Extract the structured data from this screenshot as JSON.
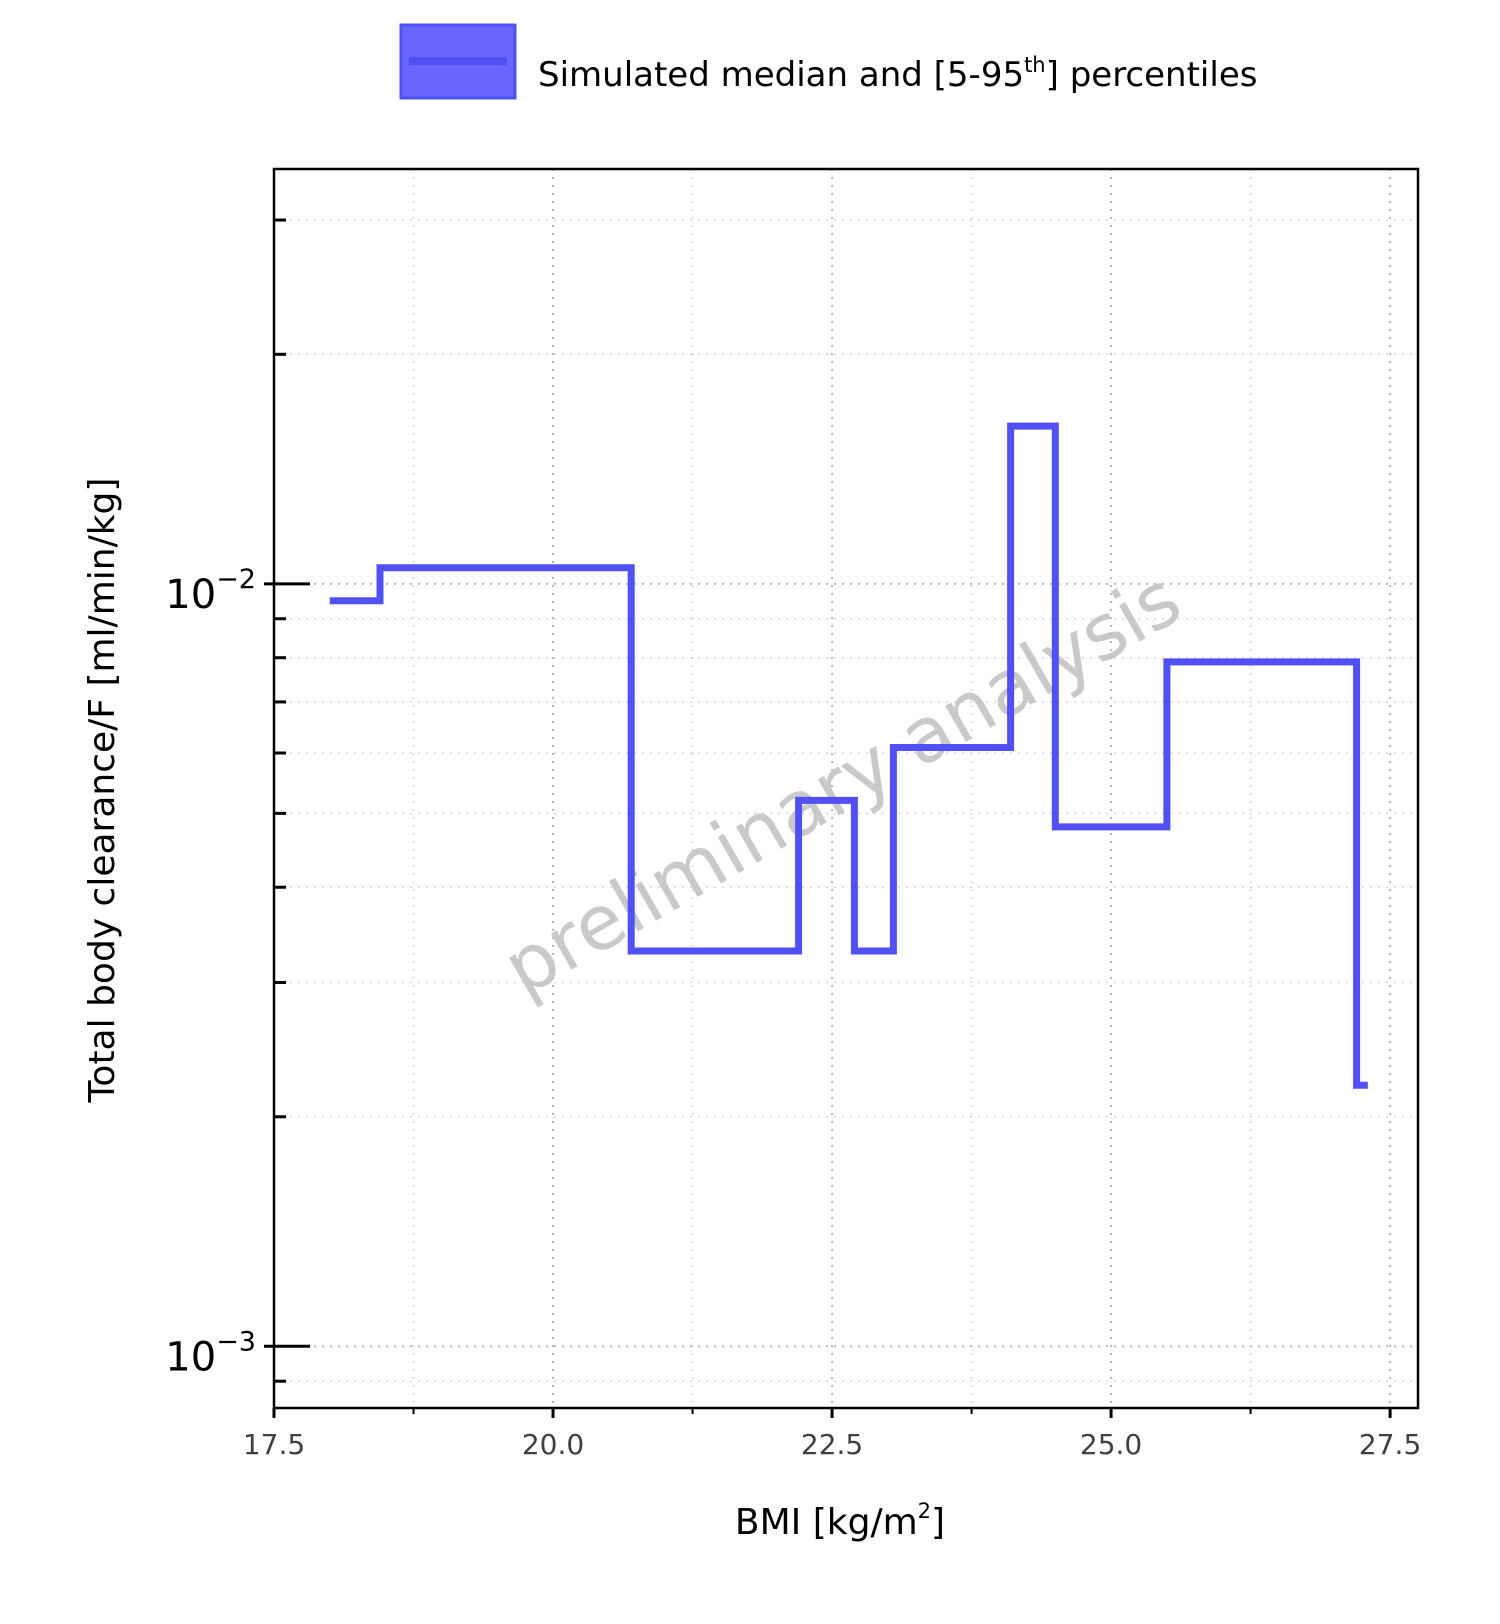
{
  "chart_data": {
    "type": "line",
    "line_shape": "step",
    "series": [
      {
        "label": "median",
        "color": "#5050F5",
        "x": [
          18.0,
          18.45,
          20.7,
          22.2,
          22.7,
          23.05,
          24.1,
          24.5,
          25.5,
          27.2,
          27.3
        ],
        "y": [
          0.0095,
          0.0105,
          0.0033,
          0.0052,
          0.0033,
          0.0061,
          0.0161,
          0.0048,
          0.0079,
          0.0022,
          0.0022
        ]
      }
    ],
    "legend": {
      "position": "top-center",
      "entry_main": "Simulated median and [5-95",
      "entry_sup": "th",
      "entry_end": "] percentiles",
      "swatch_fill": "#6666FF",
      "swatch_line": "#5050F5"
    },
    "xlabel": {
      "main": "BMI [kg/m",
      "sup": "2",
      "end": "]"
    },
    "ylabel": "Total body clearance/F [ml/min/kg]",
    "xlim": [
      17.5,
      27.75
    ],
    "ylim": [
      0.00083,
      0.035
    ],
    "yscale": "log",
    "x_ticks": [
      {
        "value": 17.5,
        "label": "17.5"
      },
      {
        "value": 20.0,
        "label": "20.0"
      },
      {
        "value": 22.5,
        "label": "22.5"
      },
      {
        "value": 25.0,
        "label": "25.0"
      },
      {
        "value": 27.5,
        "label": "27.5"
      }
    ],
    "x_minor_ticks": [
      18.75,
      21.25,
      23.75,
      26.25
    ],
    "y_ticks": [
      {
        "value": 0.01,
        "base": "10",
        "exp": "−2"
      },
      {
        "value": 0.001,
        "base": "10",
        "exp": "−3"
      }
    ],
    "y_minor_ticks": [
      0.0009,
      0.002,
      0.003,
      0.004,
      0.005,
      0.006,
      0.007,
      0.008,
      0.009,
      0.02,
      0.03
    ],
    "grid": true,
    "watermark": "preliminary analysis"
  }
}
